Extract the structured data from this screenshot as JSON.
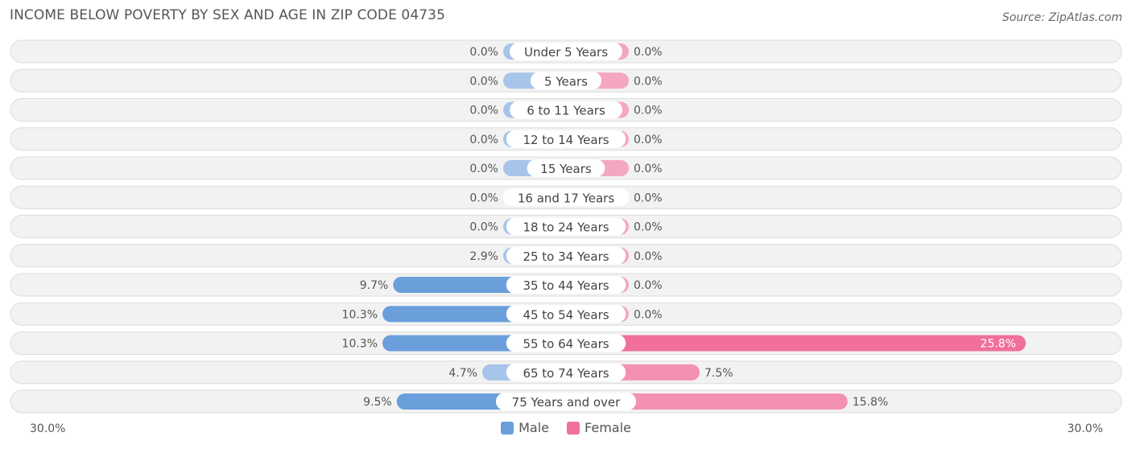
{
  "title": "INCOME BELOW POVERTY BY SEX AND AGE IN ZIP CODE 04735",
  "source": "Source: ZipAtlas.com",
  "colors": {
    "male": "#a7c4ea",
    "male_strong": "#6a9fdb",
    "female": "#f5a6c0",
    "female_strong": "#f07099",
    "row_bg": "#f2f2f2",
    "row_border": "#dcdcdc"
  },
  "legend": {
    "male_label": "Male",
    "female_label": "Female"
  },
  "axis": {
    "left_label": "30.0%",
    "right_label": "30.0%"
  },
  "chart_data": {
    "type": "bar",
    "orientation": "horizontal-diverging",
    "xlim": [
      -30,
      30
    ],
    "categories": [
      "Under 5 Years",
      "5 Years",
      "6 to 11 Years",
      "12 to 14 Years",
      "15 Years",
      "16 and 17 Years",
      "18 to 24 Years",
      "25 to 34 Years",
      "35 to 44 Years",
      "45 to 54 Years",
      "55 to 64 Years",
      "65 to 74 Years",
      "75 Years and over"
    ],
    "series": [
      {
        "name": "Male",
        "values": [
          0.0,
          0.0,
          0.0,
          0.0,
          0.0,
          0.0,
          0.0,
          2.9,
          9.7,
          10.3,
          10.3,
          4.7,
          9.5
        ],
        "labels": [
          "0.0%",
          "0.0%",
          "0.0%",
          "0.0%",
          "0.0%",
          "0.0%",
          "0.0%",
          "2.9%",
          "9.7%",
          "10.3%",
          "10.3%",
          "4.7%",
          "9.5%"
        ]
      },
      {
        "name": "Female",
        "values": [
          0.0,
          0.0,
          0.0,
          0.0,
          0.0,
          0.0,
          0.0,
          0.0,
          0.0,
          0.0,
          25.8,
          7.5,
          15.8
        ],
        "labels": [
          "0.0%",
          "0.0%",
          "0.0%",
          "0.0%",
          "0.0%",
          "0.0%",
          "0.0%",
          "0.0%",
          "0.0%",
          "0.0%",
          "25.8%",
          "7.5%",
          "15.8%"
        ]
      }
    ]
  }
}
